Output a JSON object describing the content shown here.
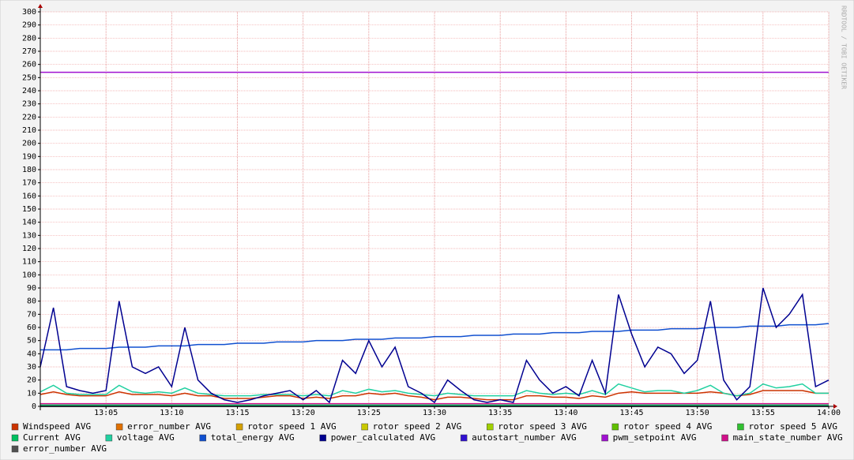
{
  "chart_data": {
    "type": "line",
    "watermark": "RRDTOOL / TOBI OETIKER",
    "x": [
      0,
      1,
      2,
      3,
      4,
      5,
      6,
      7,
      8,
      9,
      10,
      11,
      12,
      13,
      14,
      15,
      16,
      17,
      18,
      19,
      20,
      21,
      22,
      23,
      24,
      25,
      26,
      27,
      28,
      29,
      30,
      31,
      32,
      33,
      34,
      35,
      36,
      37,
      38,
      39,
      40,
      41,
      42,
      43,
      44,
      45,
      46,
      47,
      48,
      49,
      50,
      51,
      52,
      53,
      54,
      55,
      56,
      57,
      58,
      59,
      60
    ],
    "xlim": [
      0,
      60
    ],
    "xticks": [
      {
        "value": 5,
        "label": "13:05"
      },
      {
        "value": 10,
        "label": "13:10"
      },
      {
        "value": 15,
        "label": "13:15"
      },
      {
        "value": 20,
        "label": "13:20"
      },
      {
        "value": 25,
        "label": "13:25"
      },
      {
        "value": 30,
        "label": "13:30"
      },
      {
        "value": 35,
        "label": "13:35"
      },
      {
        "value": 40,
        "label": "13:40"
      },
      {
        "value": 45,
        "label": "13:45"
      },
      {
        "value": 50,
        "label": "13:50"
      },
      {
        "value": 55,
        "label": "13:55"
      },
      {
        "value": 60,
        "label": "14:00"
      }
    ],
    "ylim": [
      0,
      300
    ],
    "yticks": [
      0,
      10,
      20,
      30,
      40,
      50,
      60,
      70,
      80,
      90,
      100,
      110,
      120,
      130,
      140,
      150,
      160,
      170,
      180,
      190,
      200,
      210,
      220,
      230,
      240,
      250,
      260,
      270,
      280,
      290,
      300
    ],
    "grid": true,
    "series": [
      {
        "name": "Windspeed AVG",
        "color": "#cc3300",
        "values": [
          9,
          11,
          9,
          8,
          8,
          8,
          11,
          9,
          9,
          9,
          8,
          10,
          8,
          8,
          6,
          6,
          6,
          7,
          8,
          8,
          6,
          7,
          6,
          8,
          8,
          10,
          9,
          10,
          8,
          7,
          5,
          7,
          7,
          6,
          5,
          5,
          5,
          8,
          8,
          7,
          7,
          6,
          8,
          7,
          10,
          11,
          10,
          10,
          10,
          10,
          10,
          11,
          10,
          8,
          9,
          12,
          12,
          12,
          12,
          10,
          10
        ]
      },
      {
        "name": "error_number AVG",
        "color": "#e07000",
        "values": [
          0,
          0,
          0,
          0,
          0,
          0,
          0,
          0,
          0,
          0,
          0,
          0,
          0,
          0,
          0,
          0,
          0,
          0,
          0,
          0,
          0,
          0,
          0,
          0,
          0,
          0,
          0,
          0,
          0,
          0,
          0,
          0,
          0,
          0,
          0,
          0,
          0,
          0,
          0,
          0,
          0,
          0,
          0,
          0,
          0,
          0,
          0,
          0,
          0,
          0,
          0,
          0,
          0,
          0,
          0,
          0,
          0,
          0,
          0,
          0,
          0
        ]
      },
      {
        "name": "rotor speed 1 AVG",
        "color": "#d4a000",
        "values": [
          0,
          0,
          0,
          0,
          0,
          0,
          0,
          0,
          0,
          0,
          0,
          0,
          0,
          0,
          0,
          0,
          0,
          0,
          0,
          0,
          0,
          0,
          0,
          0,
          0,
          0,
          0,
          0,
          0,
          0,
          0,
          0,
          0,
          0,
          0,
          0,
          0,
          0,
          0,
          0,
          0,
          0,
          0,
          0,
          0,
          0,
          0,
          0,
          0,
          0,
          0,
          0,
          0,
          0,
          0,
          0,
          0,
          0,
          0,
          0,
          0
        ]
      },
      {
        "name": "rotor speed 2 AVG",
        "color": "#c8c800",
        "values": [
          0,
          0,
          0,
          0,
          0,
          0,
          0,
          0,
          0,
          0,
          0,
          0,
          0,
          0,
          0,
          0,
          0,
          0,
          0,
          0,
          0,
          0,
          0,
          0,
          0,
          0,
          0,
          0,
          0,
          0,
          0,
          0,
          0,
          0,
          0,
          0,
          0,
          0,
          0,
          0,
          0,
          0,
          0,
          0,
          0,
          0,
          0,
          0,
          0,
          0,
          0,
          0,
          0,
          0,
          0,
          0,
          0,
          0,
          0,
          0,
          0
        ]
      },
      {
        "name": "rotor speed 3 AVG",
        "color": "#a0d000",
        "values": [
          0,
          0,
          0,
          0,
          0,
          0,
          0,
          0,
          0,
          0,
          0,
          0,
          0,
          0,
          0,
          0,
          0,
          0,
          0,
          0,
          0,
          0,
          0,
          0,
          0,
          0,
          0,
          0,
          0,
          0,
          0,
          0,
          0,
          0,
          0,
          0,
          0,
          0,
          0,
          0,
          0,
          0,
          0,
          0,
          0,
          0,
          0,
          0,
          0,
          0,
          0,
          0,
          0,
          0,
          0,
          0,
          0,
          0,
          0,
          0,
          0
        ]
      },
      {
        "name": "rotor speed 4 AVG",
        "color": "#60c000",
        "values": [
          0,
          0,
          0,
          0,
          0,
          0,
          0,
          0,
          0,
          0,
          0,
          0,
          0,
          0,
          0,
          0,
          0,
          0,
          0,
          0,
          0,
          0,
          0,
          0,
          0,
          0,
          0,
          0,
          0,
          0,
          0,
          0,
          0,
          0,
          0,
          0,
          0,
          0,
          0,
          0,
          0,
          0,
          0,
          0,
          0,
          0,
          0,
          0,
          0,
          0,
          0,
          0,
          0,
          0,
          0,
          0,
          0,
          0,
          0,
          0,
          0
        ]
      },
      {
        "name": "rotor speed 5 AVG",
        "color": "#30c030",
        "values": [
          0,
          0,
          0,
          0,
          0,
          0,
          0,
          0,
          0,
          0,
          0,
          0,
          0,
          0,
          0,
          0,
          0,
          0,
          0,
          0,
          0,
          0,
          0,
          0,
          0,
          0,
          0,
          0,
          0,
          0,
          0,
          0,
          0,
          0,
          0,
          0,
          0,
          0,
          0,
          0,
          0,
          0,
          0,
          0,
          0,
          0,
          0,
          0,
          0,
          0,
          0,
          0,
          0,
          0,
          0,
          0,
          0,
          0,
          0,
          0,
          0
        ]
      },
      {
        "name": "Current AVG",
        "color": "#00c060",
        "values": [
          1,
          1,
          1,
          1,
          1,
          1,
          1,
          1,
          1,
          1,
          1,
          1,
          1,
          1,
          1,
          1,
          1,
          1,
          1,
          1,
          1,
          1,
          1,
          1,
          1,
          1,
          1,
          1,
          1,
          1,
          1,
          1,
          1,
          1,
          1,
          1,
          1,
          1,
          1,
          1,
          1,
          1,
          1,
          1,
          1,
          1,
          1,
          1,
          1,
          1,
          1,
          1,
          1,
          1,
          1,
          1,
          1,
          1,
          1,
          1,
          1
        ]
      },
      {
        "name": "voltage AVG",
        "color": "#20d0a0",
        "values": [
          11,
          16,
          10,
          9,
          9,
          9,
          16,
          11,
          10,
          11,
          10,
          14,
          10,
          9,
          8,
          8,
          8,
          9,
          9,
          9,
          8,
          9,
          8,
          12,
          10,
          13,
          11,
          12,
          10,
          9,
          8,
          10,
          9,
          8,
          8,
          8,
          8,
          12,
          10,
          9,
          10,
          9,
          12,
          9,
          17,
          14,
          11,
          12,
          12,
          10,
          12,
          16,
          10,
          8,
          10,
          17,
          14,
          15,
          17,
          10,
          10
        ]
      },
      {
        "name": "total_energy AVG",
        "color": "#1050d0",
        "values": [
          43,
          43,
          43,
          44,
          44,
          44,
          45,
          45,
          45,
          46,
          46,
          46,
          47,
          47,
          47,
          48,
          48,
          48,
          49,
          49,
          49,
          50,
          50,
          50,
          51,
          51,
          51,
          52,
          52,
          52,
          53,
          53,
          53,
          54,
          54,
          54,
          55,
          55,
          55,
          56,
          56,
          56,
          57,
          57,
          57,
          58,
          58,
          58,
          59,
          59,
          59,
          60,
          60,
          60,
          61,
          61,
          61,
          62,
          62,
          62,
          63
        ]
      },
      {
        "name": "power_calculated AVG",
        "color": "#000090",
        "values": [
          30,
          75,
          15,
          12,
          10,
          12,
          80,
          30,
          25,
          30,
          15,
          60,
          20,
          10,
          5,
          3,
          5,
          8,
          10,
          12,
          5,
          12,
          3,
          35,
          25,
          50,
          30,
          45,
          15,
          10,
          3,
          20,
          12,
          5,
          3,
          5,
          3,
          35,
          20,
          10,
          15,
          8,
          35,
          10,
          85,
          55,
          30,
          45,
          40,
          25,
          35,
          80,
          20,
          5,
          15,
          90,
          60,
          70,
          85,
          15,
          20
        ]
      },
      {
        "name": "autostart_number AVG",
        "color": "#3010d0",
        "values": [
          0,
          0,
          0,
          0,
          0,
          0,
          0,
          0,
          0,
          0,
          0,
          0,
          0,
          0,
          0,
          0,
          0,
          0,
          0,
          0,
          0,
          0,
          0,
          0,
          0,
          0,
          0,
          0,
          0,
          0,
          0,
          0,
          0,
          0,
          0,
          0,
          0,
          0,
          0,
          0,
          0,
          0,
          0,
          0,
          0,
          0,
          0,
          0,
          0,
          0,
          0,
          0,
          0,
          0,
          0,
          0,
          0,
          0,
          0,
          0,
          0
        ]
      },
      {
        "name": "pwm_setpoint AVG",
        "color": "#a010d0",
        "values": [
          254,
          254,
          254,
          254,
          254,
          254,
          254,
          254,
          254,
          254,
          254,
          254,
          254,
          254,
          254,
          254,
          254,
          254,
          254,
          254,
          254,
          254,
          254,
          254,
          254,
          254,
          254,
          254,
          254,
          254,
          254,
          254,
          254,
          254,
          254,
          254,
          254,
          254,
          254,
          254,
          254,
          254,
          254,
          254,
          254,
          254,
          254,
          254,
          254,
          254,
          254,
          254,
          254,
          254,
          254,
          254,
          254,
          254,
          254,
          254,
          254
        ]
      },
      {
        "name": "main_state_number AVG",
        "color": "#d0108a",
        "values": [
          2,
          2,
          2,
          2,
          2,
          2,
          2,
          2,
          2,
          2,
          2,
          2,
          2,
          2,
          2,
          2,
          2,
          2,
          2,
          2,
          2,
          2,
          2,
          2,
          2,
          2,
          2,
          2,
          2,
          2,
          2,
          2,
          2,
          2,
          2,
          2,
          2,
          2,
          2,
          2,
          2,
          2,
          2,
          2,
          2,
          2,
          2,
          2,
          2,
          2,
          2,
          2,
          2,
          2,
          2,
          2,
          2,
          2,
          2,
          2,
          2
        ]
      },
      {
        "name": "error_number AVG",
        "color": "#505050",
        "values": [
          0,
          0,
          0,
          0,
          0,
          0,
          0,
          0,
          0,
          0,
          0,
          0,
          0,
          0,
          0,
          0,
          0,
          0,
          0,
          0,
          0,
          0,
          0,
          0,
          0,
          0,
          0,
          0,
          0,
          0,
          0,
          0,
          0,
          0,
          0,
          0,
          0,
          0,
          0,
          0,
          0,
          0,
          0,
          0,
          0,
          0,
          0,
          0,
          0,
          0,
          0,
          0,
          0,
          0,
          0,
          0,
          0,
          0,
          0,
          0,
          0
        ]
      }
    ]
  }
}
